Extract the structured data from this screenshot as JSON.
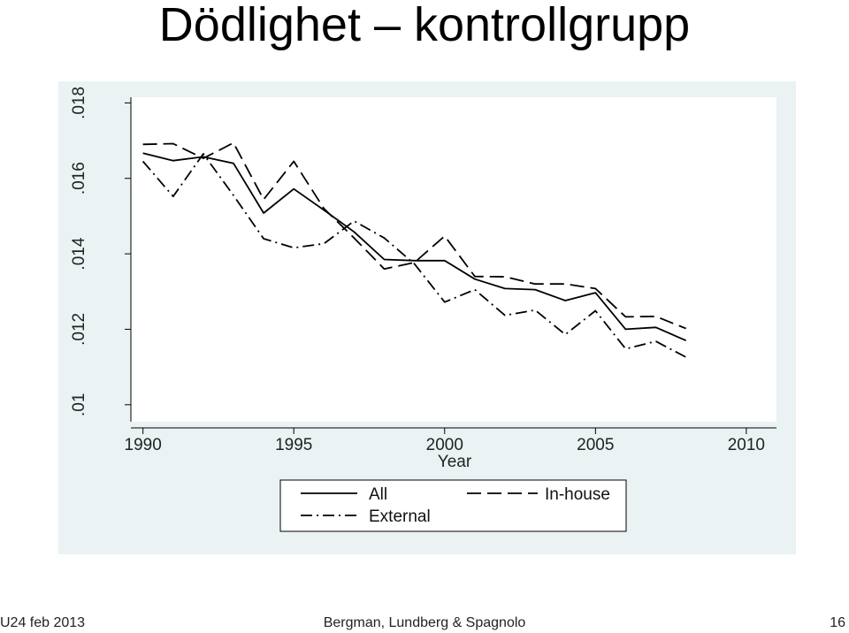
{
  "slide": {
    "title": "Dödlighet – kontrollgrupp",
    "footer_left": "U24 feb 2013",
    "footer_center": "Bergman, Lundberg & Spagnolo",
    "footer_right": "16"
  },
  "chart_data": {
    "type": "line",
    "title": "",
    "xlabel": "Year",
    "ylabel": "",
    "xlim": [
      1989.6,
      2011.0
    ],
    "ylim": [
      0.00955,
      0.01815
    ],
    "x_ticks": [
      1990,
      1995,
      2000,
      2005,
      2010
    ],
    "x_tick_labels": [
      "1990",
      "1995",
      "2000",
      "2005",
      "2010"
    ],
    "y_ticks": [
      0.01,
      0.012,
      0.014,
      0.016,
      0.018
    ],
    "y_tick_labels": [
      ".01",
      ".012",
      ".014",
      ".016",
      ".018"
    ],
    "grid": false,
    "legend_position": "bottom",
    "colors": {
      "panel": "#eaf2f3",
      "plot": "#ffffff",
      "line": "#000000"
    },
    "x": [
      1990,
      1991,
      1992,
      1993,
      1994,
      1995,
      1996,
      1997,
      1998,
      1999,
      2000,
      2001,
      2002,
      2003,
      2004,
      2005,
      2006,
      2007,
      2008
    ],
    "series": [
      {
        "name": "All",
        "dash": "solid",
        "values": [
          0.01667,
          0.01647,
          0.01657,
          0.0164,
          0.01508,
          0.01572,
          0.01516,
          0.01458,
          0.01385,
          0.01382,
          0.01382,
          0.01333,
          0.01308,
          0.01305,
          0.01276,
          0.01297,
          0.012,
          0.01205,
          0.0117
        ]
      },
      {
        "name": "In-house",
        "dash": "long-dash",
        "values": [
          0.0169,
          0.01692,
          0.01653,
          0.01694,
          0.01544,
          0.01645,
          0.0152,
          0.01442,
          0.0136,
          0.01377,
          0.01447,
          0.0134,
          0.01339,
          0.0132,
          0.0132,
          0.01308,
          0.01233,
          0.01234,
          0.01202
        ]
      },
      {
        "name": "External",
        "dash": "dash-dot",
        "values": [
          0.01645,
          0.01552,
          0.01665,
          0.01555,
          0.0144,
          0.01416,
          0.01427,
          0.01487,
          0.01442,
          0.01373,
          0.01272,
          0.01305,
          0.01237,
          0.01251,
          0.01186,
          0.01249,
          0.01148,
          0.01168,
          0.01126
        ]
      }
    ]
  }
}
